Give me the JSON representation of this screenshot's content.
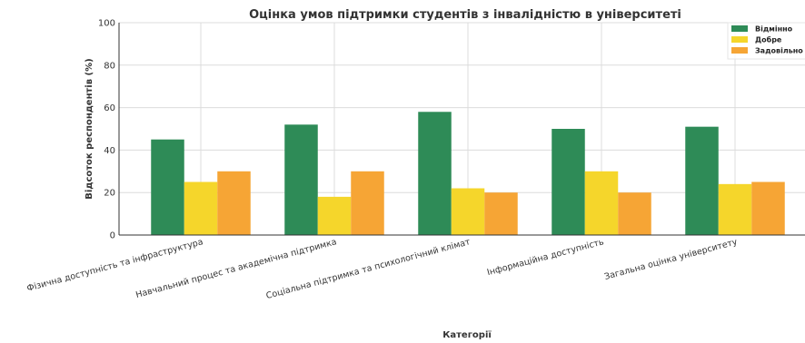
{
  "chart_data": {
    "type": "bar",
    "title": "Оцінка умов підтримки студентів з інвалідністю в університеті",
    "xlabel": "Категорії",
    "ylabel": "Відсоток респондентів (%)",
    "ylim": [
      0,
      100
    ],
    "yticks": [
      "0",
      "20",
      "40",
      "60",
      "80",
      "100"
    ],
    "grid": true,
    "legend_position": "top-right",
    "categories": [
      "Фізична доступність та інфраструктура",
      "Навчальний процес та академічна підтримка",
      "Соціальна підтримка та психологічний клімат",
      "Інформаційна доступність",
      "Загальна оцінка університету"
    ],
    "series": [
      {
        "name": "Відмінно",
        "color": "#2e8b57",
        "values": [
          45,
          52,
          58,
          50,
          51
        ]
      },
      {
        "name": "Добре",
        "color": "#f5d62b",
        "values": [
          25,
          18,
          22,
          30,
          24
        ]
      },
      {
        "name": "Задовільно",
        "color": "#f6a535",
        "values": [
          30,
          30,
          20,
          20,
          25
        ]
      }
    ]
  }
}
